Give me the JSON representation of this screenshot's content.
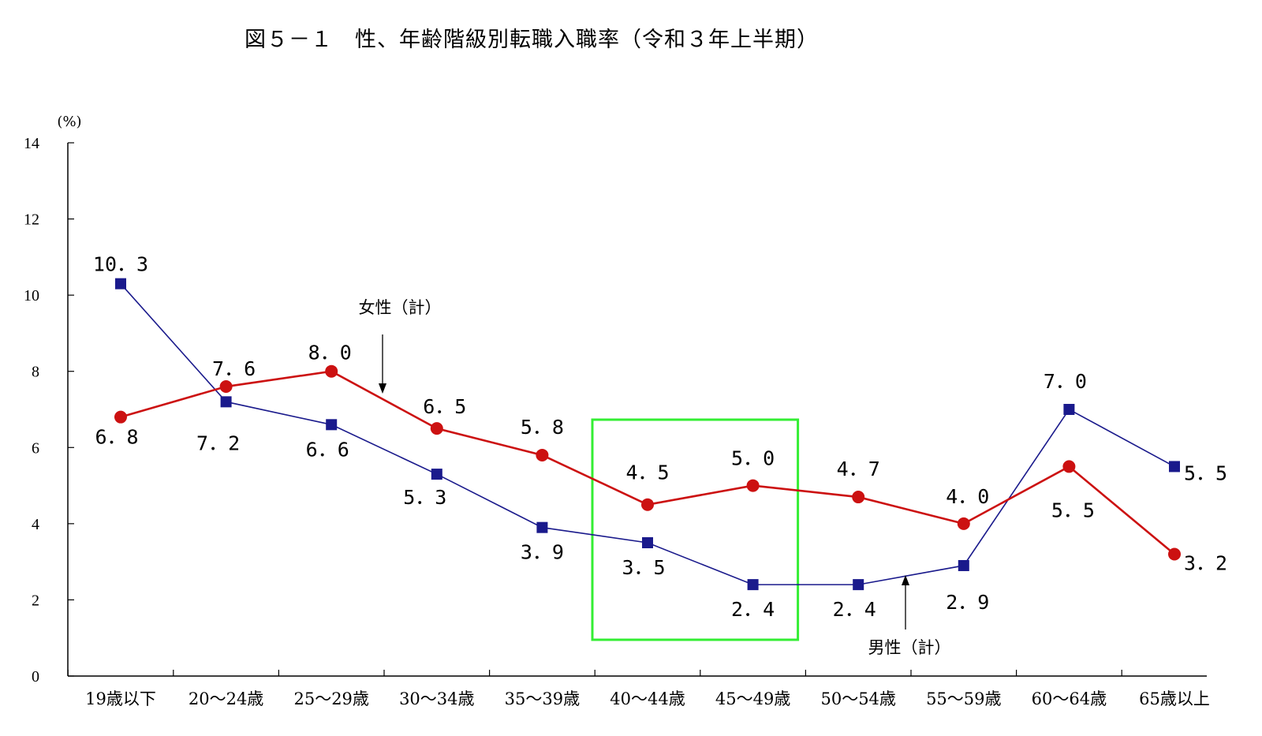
{
  "title": "図５－１　性、年齢階級別転職入職率（令和３年上半期）",
  "chart_data": {
    "type": "line",
    "title": "図５－１　性、年齢階級別転職入職率（令和３年上半期）",
    "ylabel": "(%)",
    "ylim": [
      0,
      14
    ],
    "yticks": [
      "0",
      "2",
      "4",
      "6",
      "8",
      "10",
      "12",
      "14"
    ],
    "categories": [
      "19歳以下",
      "20～24歳",
      "25～29歳",
      "30～34歳",
      "35～39歳",
      "40～44歳",
      "45～49歳",
      "50～54歳",
      "55～59歳",
      "60～64歳",
      "65歳以上"
    ],
    "series": [
      {
        "name": "男性（計）",
        "color": "#1a1a8c",
        "marker": "square",
        "values": [
          10.3,
          7.2,
          6.6,
          5.3,
          3.9,
          3.5,
          2.4,
          2.4,
          2.9,
          7.0,
          5.5
        ],
        "labels": [
          "10．3",
          "7．2",
          "6．6",
          "5．3",
          "3．9",
          "3．5",
          "2．4",
          "2．4",
          "2．9",
          "7．0",
          "5．5"
        ]
      },
      {
        "name": "女性（計）",
        "color": "#cc1111",
        "marker": "circle",
        "values": [
          6.8,
          7.6,
          8.0,
          6.5,
          5.8,
          4.5,
          5.0,
          4.7,
          4.0,
          5.5,
          3.2
        ],
        "labels": [
          "6．8",
          "7．6",
          "8．0",
          "6．5",
          "5．8",
          "4．5",
          "5．0",
          "4．7",
          "4．0",
          "5．5",
          "3．2"
        ]
      }
    ],
    "annotations": {
      "female_series_label": "女性（計）",
      "male_series_label": "男性（計）",
      "highlight_color": "#33ee33",
      "highlight_categories": [
        "40～44歳",
        "45～49歳"
      ]
    },
    "grid": false
  }
}
